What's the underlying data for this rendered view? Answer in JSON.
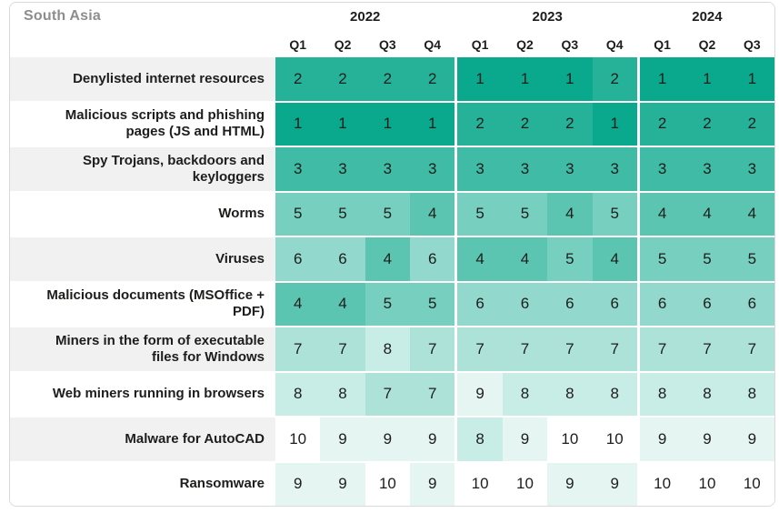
{
  "title": "South Asia",
  "colors": {
    "text": "#1d1d1b",
    "title_gray": "#8d8d8d",
    "label_zebra": "#f1f1f2",
    "card_border": "#d9d9d9",
    "rank_colors": {
      "1": "#0aa88c",
      "2": "#25b299",
      "3": "#40bba6",
      "4": "#5cc5b2",
      "5": "#77cfbf",
      "6": "#92d8cc",
      "7": "#ade2d9",
      "8": "#c8ece6",
      "9": "#e4f5f2",
      "10": "#ffffff"
    }
  },
  "chart_data": {
    "type": "heatmap",
    "title": "South Asia",
    "value_range": [
      1,
      10
    ],
    "color_scale": [
      "#0aa88c",
      "#ffffff"
    ],
    "col_groups": [
      {
        "year": "2022",
        "quarters": [
          "Q1",
          "Q2",
          "Q3",
          "Q4"
        ]
      },
      {
        "year": "2023",
        "quarters": [
          "Q1",
          "Q2",
          "Q3",
          "Q4"
        ]
      },
      {
        "year": "2024",
        "quarters": [
          "Q1",
          "Q2",
          "Q3"
        ]
      }
    ],
    "rows": [
      {
        "label": "Denylisted internet resources",
        "values": [
          2,
          2,
          2,
          2,
          1,
          1,
          1,
          2,
          1,
          1,
          1
        ]
      },
      {
        "label": "Malicious scripts and phishing pages (JS and HTML)",
        "values": [
          1,
          1,
          1,
          1,
          2,
          2,
          2,
          1,
          2,
          2,
          2
        ]
      },
      {
        "label": "Spy Trojans, backdoors and keyloggers",
        "values": [
          3,
          3,
          3,
          3,
          3,
          3,
          3,
          3,
          3,
          3,
          3
        ]
      },
      {
        "label": "Worms",
        "values": [
          5,
          5,
          5,
          4,
          5,
          5,
          4,
          5,
          4,
          4,
          4
        ]
      },
      {
        "label": "Viruses",
        "values": [
          6,
          6,
          4,
          6,
          4,
          4,
          5,
          4,
          5,
          5,
          5
        ]
      },
      {
        "label": "Malicious documents (MSOffice + PDF)",
        "values": [
          4,
          4,
          5,
          5,
          6,
          6,
          6,
          6,
          6,
          6,
          6
        ]
      },
      {
        "label": "Miners in the form of executable files for Windows",
        "values": [
          7,
          7,
          8,
          7,
          7,
          7,
          7,
          7,
          7,
          7,
          7
        ]
      },
      {
        "label": "Web miners running in browsers",
        "values": [
          8,
          8,
          7,
          7,
          9,
          8,
          8,
          8,
          8,
          8,
          8
        ]
      },
      {
        "label": "Malware for AutoCAD",
        "values": [
          10,
          9,
          9,
          9,
          8,
          9,
          10,
          10,
          9,
          9,
          9
        ]
      },
      {
        "label": "Ransomware",
        "values": [
          9,
          9,
          10,
          9,
          10,
          10,
          9,
          9,
          10,
          10,
          10
        ]
      }
    ]
  }
}
